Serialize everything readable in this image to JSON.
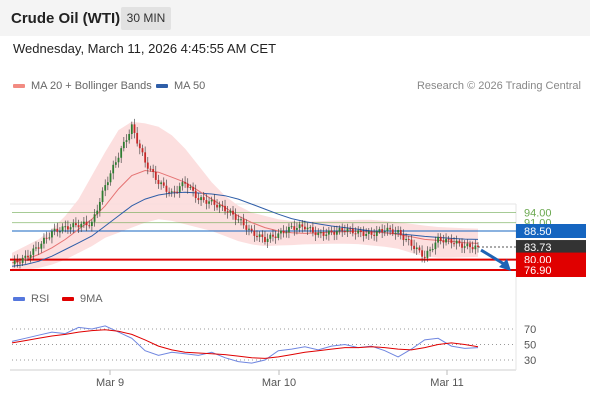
{
  "header": {
    "title": "Crude Oil (WTI)",
    "timeframe": "30 MIN"
  },
  "datetime": "Wednesday, March 11, 2026 4:45:55 AM CET",
  "legend": {
    "ma20": {
      "label": "MA 20 + Bollinger Bands",
      "color": "#f28b82"
    },
    "ma50": {
      "label": "MA 50",
      "color": "#2f5ea8"
    },
    "credit": "Research © 2026 Trading Central"
  },
  "rsi_legend": {
    "rsi": {
      "label": "RSI",
      "color": "#5577dd"
    },
    "ma": {
      "label": "9MA",
      "color": "#e00000"
    }
  },
  "chart_data": [
    {
      "type": "candlestick",
      "title": "Crude Oil (WTI)",
      "x_ticks": [
        "Mar 9",
        "Mar 10",
        "Mar 11"
      ],
      "levels": [
        {
          "value": 94.0,
          "label": "94.00",
          "kind": "resistance",
          "color": "#6aa84f"
        },
        {
          "value": 91.0,
          "label": "91.00",
          "kind": "resistance",
          "color": "#6aa84f"
        },
        {
          "value": 88.5,
          "label": "88.50",
          "kind": "pivot",
          "color": "#1565c0"
        },
        {
          "value": 83.73,
          "label": "83.73",
          "kind": "last",
          "color": "#333333"
        },
        {
          "value": 80.0,
          "label": "80.00",
          "kind": "support",
          "color": "#e00000"
        },
        {
          "value": 76.9,
          "label": "76.90",
          "kind": "support",
          "color": "#e00000"
        }
      ],
      "close_path": [
        78.6,
        80.5,
        84,
        88.2,
        89.5,
        90.4,
        90.7,
        102,
        111,
        119.5,
        109,
        103,
        99.5,
        103,
        98,
        97,
        95,
        92,
        88,
        86,
        87.5,
        89.5,
        89.8,
        87.5,
        88,
        89,
        88,
        87.5,
        89,
        88,
        84.5,
        80.8,
        86,
        85.5,
        84,
        83.73
      ],
      "ma20_path": [
        79,
        80,
        81.5,
        83.5,
        86,
        89,
        92,
        96,
        101,
        105,
        106.5,
        106,
        104.5,
        103,
        100.5,
        98,
        95.5,
        93,
        91,
        89.5,
        88.5,
        88,
        87.8,
        88,
        88.2,
        88.3,
        88.4,
        88.2,
        88,
        87.5,
        86.8,
        86,
        85.7,
        85.4,
        85,
        84.8
      ],
      "ma50_path": [
        78,
        78.5,
        79.5,
        81,
        83,
        85,
        87,
        90,
        93,
        96,
        98,
        99.2,
        99.8,
        100,
        99.8,
        99.5,
        99,
        98,
        96.5,
        95,
        93.5,
        92.2,
        91.3,
        90.6,
        90,
        89.5,
        89,
        88.5,
        88,
        87.7,
        87.3,
        86.9,
        86.6,
        86.3,
        86.1,
        86
      ],
      "bb_upper_path": [
        82,
        84,
        86,
        89,
        93,
        98,
        105,
        112,
        118.5,
        121,
        120.5,
        119.5,
        117,
        113,
        108,
        103,
        99,
        96,
        94,
        93,
        92,
        91.5,
        91.3,
        91.4,
        91.6,
        91.7,
        91.8,
        91.8,
        91.5,
        91.1,
        90.6,
        90.1,
        89.7,
        89.5,
        89.3,
        89.2
      ],
      "bb_lower_path": [
        76.5,
        77,
        77.5,
        78.5,
        80,
        82,
        84,
        86.5,
        88,
        89.5,
        91,
        92,
        91.5,
        90.5,
        89.5,
        88.5,
        87,
        85.5,
        84.5,
        84,
        84.2,
        84.3,
        84.5,
        84.6,
        84.7,
        84.7,
        84.6,
        84.2,
        83.8,
        83.2,
        82,
        81,
        80.6,
        80.6,
        80.7,
        80.8
      ],
      "forecast_target": 76.9
    },
    {
      "type": "line",
      "title": "RSI",
      "y_ticks": [
        70,
        50,
        30
      ],
      "series": [
        {
          "name": "RSI",
          "values": [
            54,
            58,
            62,
            66,
            64,
            72,
            70,
            74,
            66,
            58,
            42,
            36,
            40,
            38,
            36,
            40,
            33,
            28,
            26,
            30,
            42,
            44,
            47,
            43,
            48,
            50,
            46,
            48,
            42,
            34,
            44,
            56,
            58,
            48,
            45,
            46
          ]
        },
        {
          "name": "9MA",
          "values": [
            52,
            55,
            58,
            61,
            63,
            66,
            68,
            69,
            67,
            63,
            56,
            48,
            43,
            40,
            39,
            38,
            37,
            35,
            33,
            32,
            34,
            37,
            40,
            42,
            44,
            46,
            46,
            47,
            46,
            44,
            43,
            46,
            50,
            52,
            50,
            47
          ]
        }
      ]
    }
  ]
}
